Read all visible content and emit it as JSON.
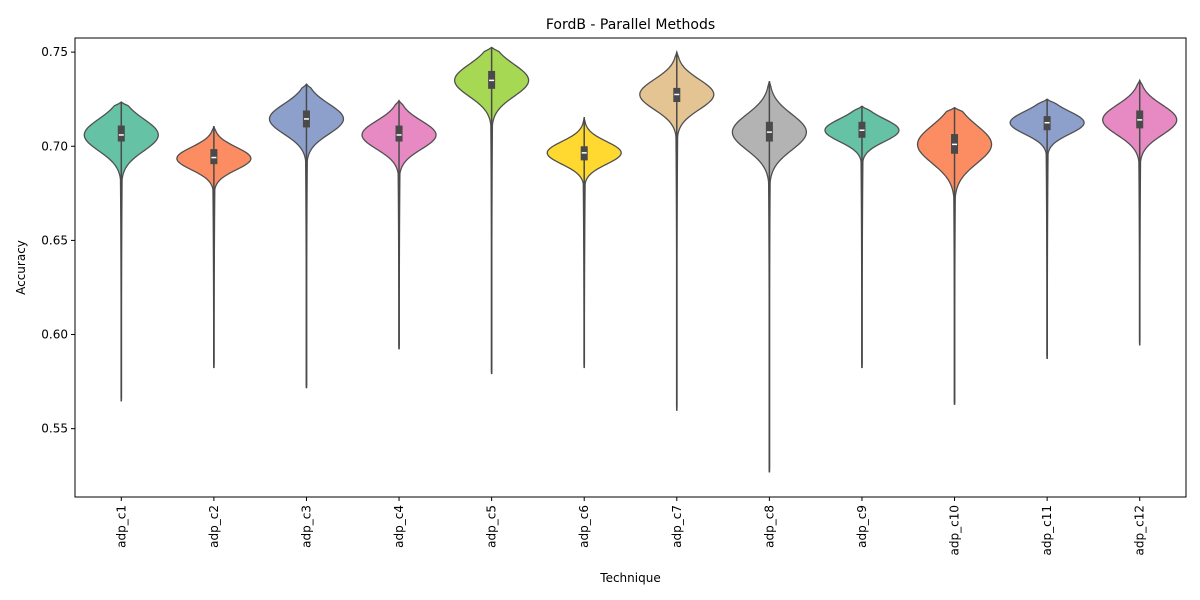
{
  "chart_data": {
    "type": "violin",
    "title": "FordB - Parallel Methods",
    "xlabel": "Technique",
    "ylabel": "Accuracy",
    "ylim": [
      0.5137,
      0.7575
    ],
    "yticks": [
      "0.55",
      "0.60",
      "0.65",
      "0.70",
      "0.75"
    ],
    "ytick_values": [
      0.55,
      0.6,
      0.65,
      0.7,
      0.75
    ],
    "grid": false,
    "categories": [
      "adp_c1",
      "adp_c2",
      "adp_c3",
      "adp_c4",
      "adp_c5",
      "adp_c6",
      "adp_c7",
      "adp_c8",
      "adp_c9",
      "adp_c10",
      "adp_c11",
      "adp_c12"
    ],
    "series": [
      {
        "category": "adp_c1",
        "color": "#66c2a5",
        "min": 0.5645,
        "max": 0.7235,
        "q1": 0.7025,
        "median": 0.706,
        "q3": 0.711,
        "mode": 0.706,
        "spread": 0.0085,
        "width": 0.4
      },
      {
        "category": "adp_c2",
        "color": "#fc8d62",
        "min": 0.5822,
        "max": 0.7107,
        "q1": 0.6905,
        "median": 0.694,
        "q3": 0.6985,
        "mode": 0.6935,
        "spread": 0.006,
        "width": 0.4
      },
      {
        "category": "adp_c3",
        "color": "#8da0cb",
        "min": 0.5715,
        "max": 0.733,
        "q1": 0.71,
        "median": 0.7145,
        "q3": 0.719,
        "mode": 0.7145,
        "spread": 0.008,
        "width": 0.4
      },
      {
        "category": "adp_c4",
        "color": "#e78ac3",
        "min": 0.5922,
        "max": 0.7243,
        "q1": 0.7025,
        "median": 0.706,
        "q3": 0.711,
        "mode": 0.706,
        "spread": 0.0075,
        "width": 0.4
      },
      {
        "category": "adp_c5",
        "color": "#a6d854",
        "min": 0.579,
        "max": 0.7525,
        "q1": 0.7305,
        "median": 0.735,
        "q3": 0.74,
        "mode": 0.735,
        "spread": 0.0085,
        "width": 0.4
      },
      {
        "category": "adp_c6",
        "color": "#ffd92f",
        "min": 0.5822,
        "max": 0.7155,
        "q1": 0.6925,
        "median": 0.6965,
        "q3": 0.7,
        "mode": 0.6965,
        "spread": 0.006,
        "width": 0.4
      },
      {
        "category": "adp_c7",
        "color": "#e5c494",
        "min": 0.5595,
        "max": 0.75,
        "q1": 0.7235,
        "median": 0.7275,
        "q3": 0.731,
        "mode": 0.7275,
        "spread": 0.008,
        "width": 0.4
      },
      {
        "category": "adp_c8",
        "color": "#b3b3b3",
        "min": 0.5268,
        "max": 0.7345,
        "q1": 0.7025,
        "median": 0.7075,
        "q3": 0.713,
        "mode": 0.7075,
        "spread": 0.0095,
        "width": 0.4
      },
      {
        "category": "adp_c9",
        "color": "#66c2a5",
        "min": 0.5822,
        "max": 0.7213,
        "q1": 0.7045,
        "median": 0.7085,
        "q3": 0.713,
        "mode": 0.7085,
        "spread": 0.006,
        "width": 0.4
      },
      {
        "category": "adp_c10",
        "color": "#fc8d62",
        "min": 0.5627,
        "max": 0.7205,
        "q1": 0.696,
        "median": 0.701,
        "q3": 0.7065,
        "mode": 0.701,
        "spread": 0.01,
        "width": 0.4
      },
      {
        "category": "adp_c11",
        "color": "#8da0cb",
        "min": 0.587,
        "max": 0.725,
        "q1": 0.7085,
        "median": 0.7125,
        "q3": 0.716,
        "mode": 0.7125,
        "spread": 0.006,
        "width": 0.4
      },
      {
        "category": "adp_c12",
        "color": "#e78ac3",
        "min": 0.5942,
        "max": 0.735,
        "q1": 0.7095,
        "median": 0.714,
        "q3": 0.719,
        "mode": 0.714,
        "spread": 0.008,
        "width": 0.4
      }
    ]
  }
}
